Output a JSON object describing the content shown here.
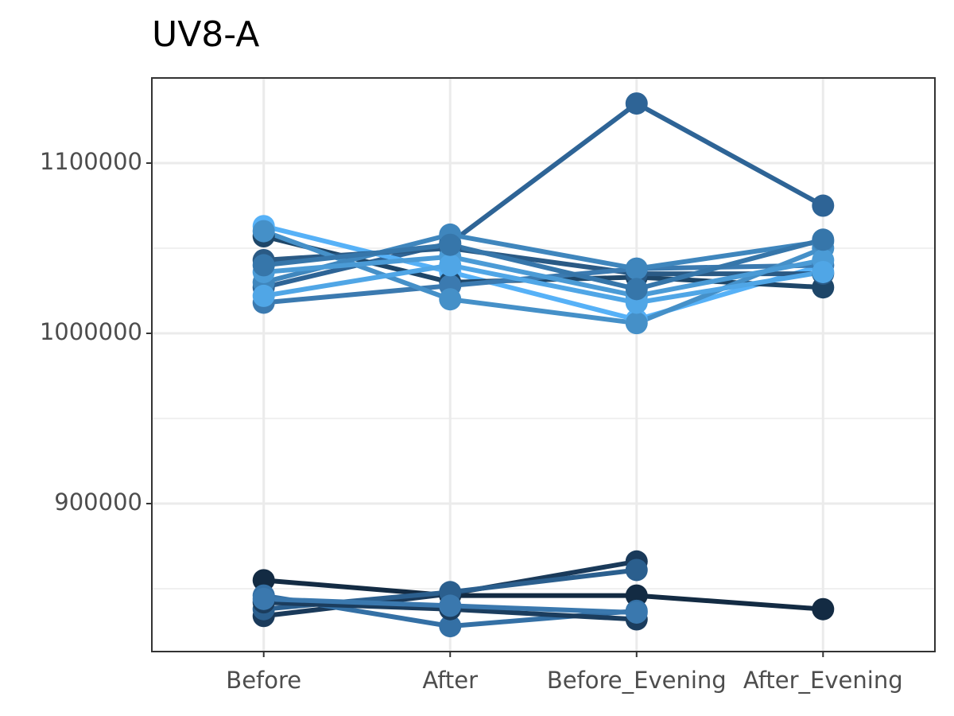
{
  "chart_data": {
    "type": "line",
    "title": "UV8-A",
    "categories": [
      "Before",
      "After",
      "Before_Evening",
      "After_Evening"
    ],
    "ylim": [
      813100,
      1150000
    ],
    "yticks": [
      900000,
      1000000,
      1100000
    ],
    "minor_yticks": [
      850000,
      950000,
      1050000
    ],
    "grid": true,
    "series": [
      {
        "color": "#2e6496",
        "values": [
          1027000,
          1053000,
          1135000,
          1075000
        ]
      },
      {
        "color": "#56b1f7",
        "values": [
          1063000,
          1036000,
          1008000,
          1040000
        ]
      },
      {
        "color": "#1e4668",
        "values": [
          1057000,
          1030000,
          1033000,
          1027000
        ]
      },
      {
        "color": "#2a5a85",
        "values": [
          1043000,
          1050000,
          1035000,
          1035000
        ]
      },
      {
        "color": "#3b7ab0",
        "values": [
          1018000,
          1028000,
          1038000,
          1040000
        ]
      },
      {
        "color": "#4590c8",
        "values": [
          1060000,
          1020000,
          1006000,
          1050000
        ]
      },
      {
        "color": "#3f86bd",
        "values": [
          1030000,
          1058000,
          1038000,
          1054000
        ]
      },
      {
        "color": "#4b9bd6",
        "values": [
          1036000,
          1045000,
          1022000,
          1043000
        ]
      },
      {
        "color": "#50a6e6",
        "values": [
          1022000,
          1040000,
          1018000,
          1036000
        ]
      },
      {
        "color": "#3676aa",
        "values": [
          1040000,
          1052000,
          1026000,
          1055000
        ]
      },
      {
        "color": "#132b43",
        "values": [
          855000,
          846000,
          846000,
          838000
        ]
      },
      {
        "color": "#1a3a5a",
        "values": [
          834000,
          847000,
          866000,
          null
        ]
      },
      {
        "color": "#3470a5",
        "values": [
          846000,
          828000,
          837000,
          null
        ]
      },
      {
        "color": "#2b5f8e",
        "values": [
          838000,
          848000,
          861000,
          null
        ]
      },
      {
        "color": "#1b3d5e",
        "values": [
          842000,
          838000,
          832000,
          null
        ]
      },
      {
        "color": "#3a78ae",
        "values": [
          844000,
          840000,
          836000,
          null
        ]
      }
    ]
  }
}
